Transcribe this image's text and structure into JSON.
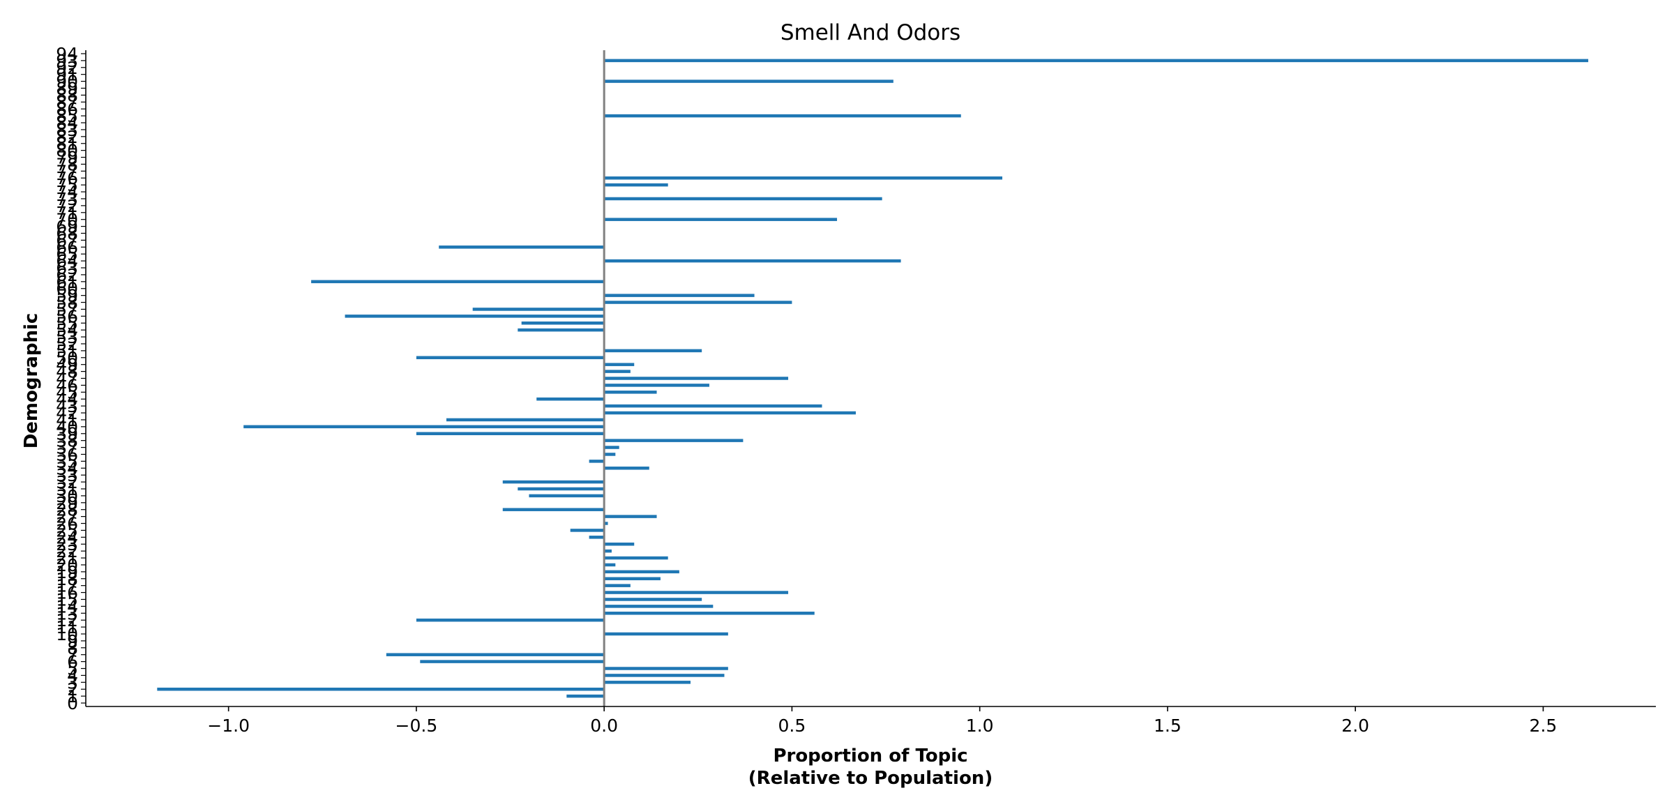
{
  "chart_data": {
    "type": "bar",
    "orientation": "horizontal",
    "title": "Smell And Odors",
    "xlabel_line1": "Proportion of Topic",
    "xlabel_line2": "(Relative to Population)",
    "ylabel": "Demographic",
    "xlim": [
      -1.38,
      2.8
    ],
    "ylim": [
      -0.5,
      94.5
    ],
    "xticks": [
      -1.0,
      -0.5,
      0.0,
      0.5,
      1.0,
      1.5,
      2.0,
      2.5
    ],
    "xtick_labels": [
      "−1.0",
      "−0.5",
      "0.0",
      "0.5",
      "1.0",
      "1.5",
      "2.0",
      "2.5"
    ],
    "categories": [
      0,
      1,
      2,
      3,
      4,
      5,
      6,
      7,
      8,
      9,
      10,
      11,
      12,
      13,
      14,
      15,
      16,
      17,
      18,
      19,
      20,
      21,
      22,
      23,
      24,
      25,
      26,
      27,
      28,
      29,
      30,
      31,
      32,
      33,
      34,
      35,
      36,
      37,
      38,
      39,
      40,
      41,
      42,
      43,
      44,
      45,
      46,
      47,
      48,
      49,
      50,
      51,
      52,
      53,
      54,
      55,
      56,
      57,
      58,
      59,
      60,
      61,
      62,
      63,
      64,
      65,
      66,
      67,
      68,
      69,
      70,
      71,
      72,
      73,
      74,
      75,
      76,
      77,
      78,
      79,
      80,
      81,
      82,
      83,
      84,
      85,
      86,
      87,
      88,
      89,
      90,
      91,
      92,
      93,
      94
    ],
    "values": [
      0,
      -0.1,
      -1.19,
      0.23,
      0.32,
      0.33,
      -0.49,
      -0.58,
      0,
      0,
      0.33,
      0,
      -0.5,
      0.56,
      0.29,
      0.26,
      0.49,
      0.07,
      0.15,
      0.2,
      0.03,
      0.17,
      0.02,
      0.08,
      -0.04,
      -0.09,
      0.01,
      0.14,
      -0.27,
      0,
      -0.2,
      -0.23,
      -0.27,
      0,
      0.12,
      -0.04,
      0.03,
      0.04,
      0.37,
      -0.5,
      -0.96,
      -0.42,
      0.67,
      0.58,
      -0.18,
      0.14,
      0.28,
      0.49,
      0.07,
      0.08,
      -0.5,
      0.26,
      0,
      0,
      -0.23,
      -0.22,
      -0.69,
      -0.35,
      0.5,
      0.4,
      0,
      -0.78,
      0,
      0,
      0.79,
      0,
      -0.44,
      0,
      0,
      0,
      0.62,
      0,
      0,
      0.74,
      0,
      0.17,
      1.06,
      0,
      0,
      0,
      0,
      0,
      0,
      0,
      0,
      0.95,
      0,
      0,
      0,
      0,
      0.77,
      0,
      0,
      2.62,
      0
    ],
    "bar_color": "#1f77b4",
    "zero_line_color": "#808080",
    "grid": false,
    "legend": "none"
  }
}
